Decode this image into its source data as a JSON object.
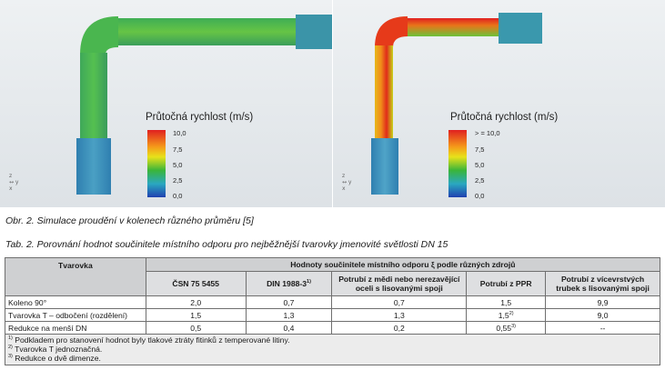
{
  "figure": {
    "left_panel": {
      "legend_title": "Průtočná rychlost (m/s)",
      "legend_ticks": [
        "10,0",
        "7,5",
        "5,0",
        "2,5",
        "0,0"
      ],
      "axis_labels": [
        "z",
        "↔ y",
        "x"
      ]
    },
    "right_panel": {
      "legend_title": "Průtočná rychlost (m/s)",
      "legend_ticks": [
        "> = 10,0",
        "7,5",
        "5,0",
        "2,5",
        "0,0"
      ],
      "axis_labels": [
        "z",
        "↔ y",
        "x"
      ]
    },
    "colors": {
      "red": "#e02020",
      "orange": "#f59a1a",
      "yellow": "#e8e21a",
      "green": "#3ab53a",
      "cyan": "#2aa8c0",
      "blue": "#2040b0"
    }
  },
  "captions": {
    "figure": "Obr. 2. Simulace proudění v kolenech různého průměru [5]",
    "table": "Tab. 2. Porovnání hodnot součinitele místního odporu pro nejběžnější tvarovky jmenovité světlosti DN 15"
  },
  "table": {
    "header_fitting": "Tvarovka",
    "header_group": "Hodnoty součinitele místního odporu ξ podle různých zdrojů",
    "columns": [
      {
        "label": "ČSN 75 5455",
        "sup": ""
      },
      {
        "label": "DIN 1988-3",
        "sup": "1)"
      },
      {
        "label": "Potrubí z mědi nebo nerezavějící oceli s lisovanými spoji",
        "sup": ""
      },
      {
        "label": "Potrubí z PPR",
        "sup": ""
      },
      {
        "label": "Potrubí z vícevrstvých trubek s lisovanými spoji",
        "sup": ""
      }
    ],
    "rows": [
      {
        "name": "Koleno 90°",
        "name_sup": "",
        "values": [
          "2,0",
          "0,7",
          "0,7",
          "1,5",
          "9,9"
        ],
        "value_sups": [
          "",
          "",
          "",
          "",
          ""
        ]
      },
      {
        "name": "Tvarovka T – odbočení (rozdělení)",
        "name_sup": "",
        "values": [
          "1,5",
          "1,3",
          "1,3",
          "1,5",
          "9,0"
        ],
        "value_sups": [
          "",
          "",
          "",
          "2)",
          ""
        ]
      },
      {
        "name": "Redukce na menší DN",
        "name_sup": "",
        "values": [
          "0,5",
          "0,4",
          "0,2",
          "0,55",
          "--"
        ],
        "value_sups": [
          "",
          "",
          "",
          "3)",
          ""
        ]
      }
    ],
    "notes": [
      {
        "sup": "1)",
        "text": "Podkladem pro stanovení hodnot byly tlakové ztráty fitinků z temperované litiny."
      },
      {
        "sup": "2)",
        "text": "Tvarovka T jednoznačná."
      },
      {
        "sup": "3)",
        "text": "Redukce o dvě dimenze."
      }
    ]
  }
}
